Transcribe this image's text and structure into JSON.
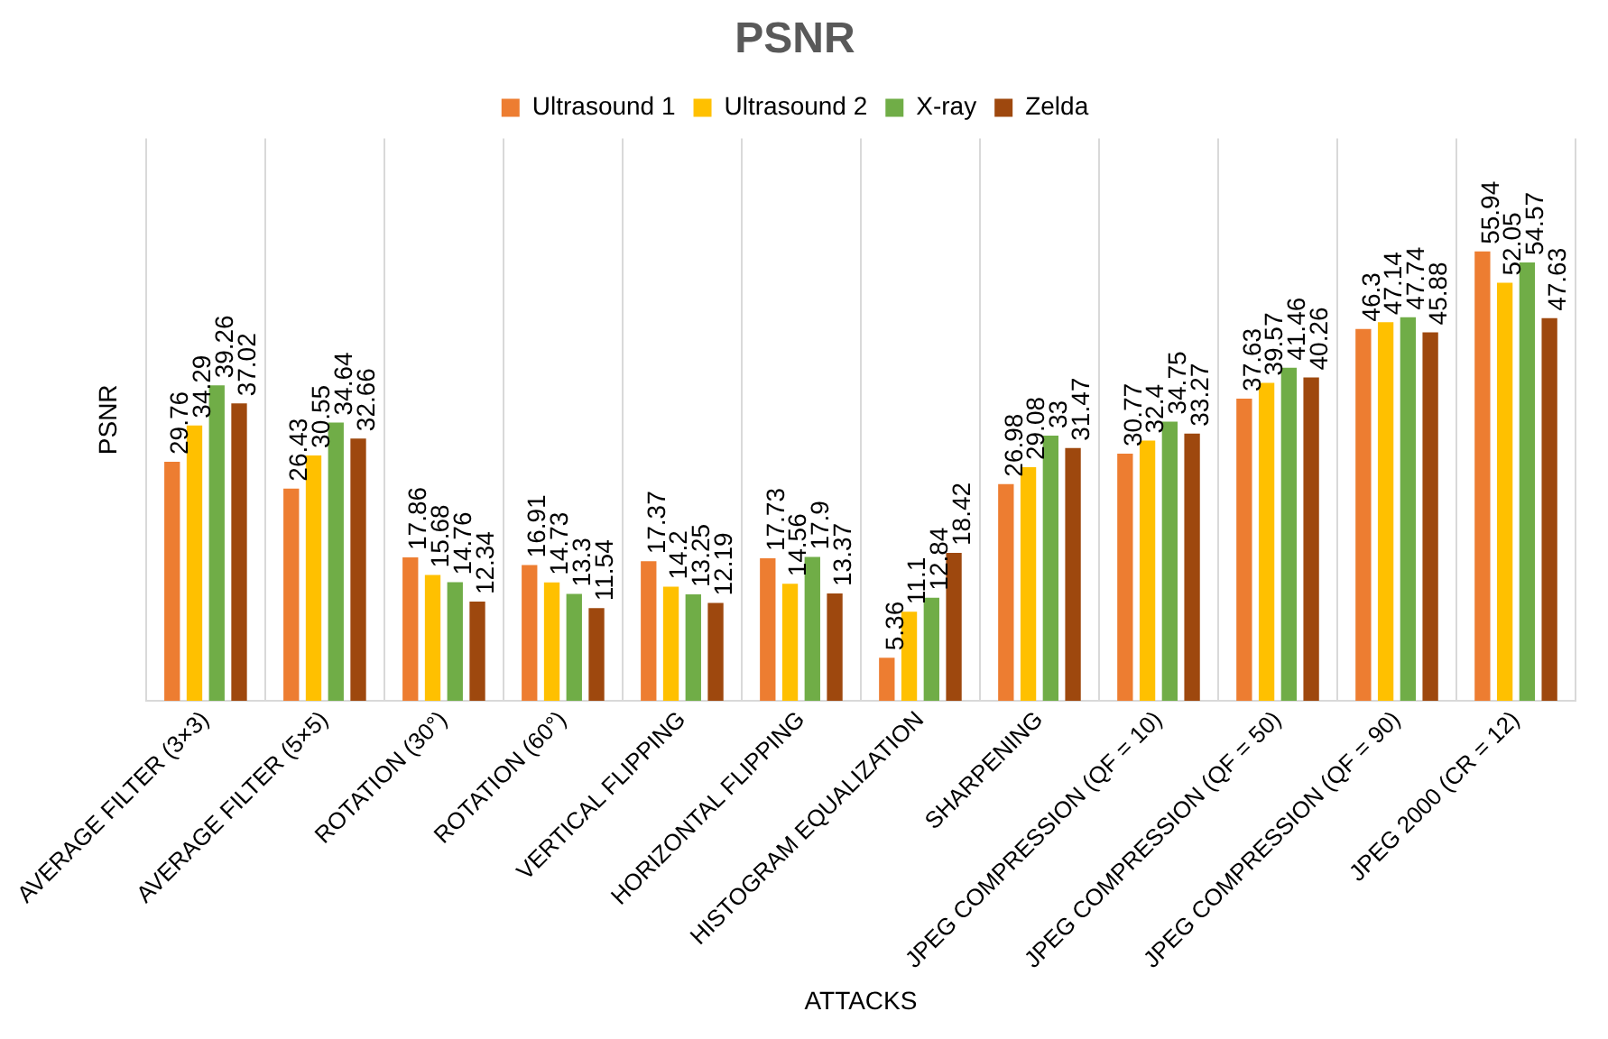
{
  "chart_data": {
    "type": "bar",
    "title": "PSNR",
    "xlabel": "ATTACKS",
    "ylabel": "PSNR",
    "categories": [
      "AVERAGE FILTER (3×3)",
      "AVERAGE FILTER (5×5)",
      "ROTATION (30°)",
      "ROTATION (60°)",
      "VERTICAL FLIPPING",
      "HORIZONTAL FLIPPING",
      "HISTOGRAM EQUALIZATION",
      "SHARPENING",
      "JPEG COMPRESSION (QF = 10)",
      "JPEG COMPRESSION (QF = 50)",
      "JPEG COMPRESSION (QF = 90)",
      "JPEG 2000 (CR = 12)"
    ],
    "series": [
      {
        "name": "Ultrasound 1",
        "color": "#ed7d31",
        "values": [
          29.76,
          26.43,
          17.86,
          16.91,
          17.37,
          17.73,
          5.36,
          26.98,
          30.77,
          37.63,
          46.3,
          55.94
        ]
      },
      {
        "name": "Ultrasound 2",
        "color": "#ffc000",
        "values": [
          34.29,
          30.55,
          15.68,
          14.73,
          14.2,
          14.56,
          11.1,
          29.08,
          32.4,
          39.57,
          47.14,
          52.05
        ]
      },
      {
        "name": "X-ray",
        "color": "#70ad47",
        "values": [
          39.26,
          34.64,
          14.76,
          13.3,
          13.25,
          17.9,
          12.84,
          33,
          34.75,
          41.46,
          47.74,
          54.57
        ]
      },
      {
        "name": "Zelda",
        "color": "#9e480e",
        "values": [
          37.02,
          32.66,
          12.34,
          11.54,
          12.19,
          13.37,
          18.42,
          31.47,
          33.27,
          40.26,
          45.88,
          47.63
        ]
      }
    ],
    "data_labels": true,
    "grid": "x",
    "legend": "top",
    "tick_labels": "x"
  }
}
